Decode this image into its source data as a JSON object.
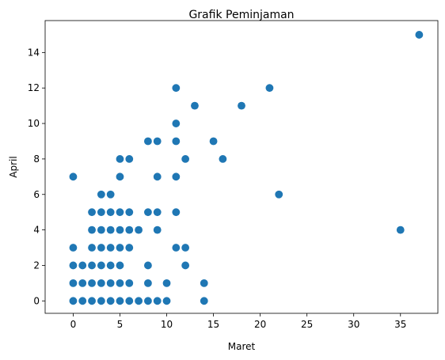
{
  "chart_data": {
    "type": "scatter",
    "title": "Grafik Peminjaman",
    "xlabel": "Maret",
    "ylabel": "April",
    "xlim": [
      -3,
      39
    ],
    "ylim": [
      -0.7,
      15.8
    ],
    "xticks": [
      0,
      5,
      10,
      15,
      20,
      25,
      30,
      35
    ],
    "yticks": [
      0,
      2,
      4,
      6,
      8,
      10,
      12,
      14
    ],
    "grid": false,
    "color": "#1f77b4",
    "points": [
      [
        37,
        15
      ],
      [
        11,
        12
      ],
      [
        21,
        12
      ],
      [
        13,
        11
      ],
      [
        18,
        11
      ],
      [
        11,
        10
      ],
      [
        8,
        9
      ],
      [
        9,
        9
      ],
      [
        11,
        9
      ],
      [
        15,
        9
      ],
      [
        5,
        8
      ],
      [
        6,
        8
      ],
      [
        12,
        8
      ],
      [
        16,
        8
      ],
      [
        0,
        7
      ],
      [
        5,
        7
      ],
      [
        9,
        7
      ],
      [
        11,
        7
      ],
      [
        3,
        6
      ],
      [
        4,
        6
      ],
      [
        22,
        6
      ],
      [
        2,
        5
      ],
      [
        3,
        5
      ],
      [
        4,
        5
      ],
      [
        5,
        5
      ],
      [
        6,
        5
      ],
      [
        8,
        5
      ],
      [
        9,
        5
      ],
      [
        11,
        5
      ],
      [
        2,
        4
      ],
      [
        3,
        4
      ],
      [
        4,
        4
      ],
      [
        5,
        4
      ],
      [
        6,
        4
      ],
      [
        7,
        4
      ],
      [
        9,
        4
      ],
      [
        35,
        4
      ],
      [
        0,
        3
      ],
      [
        2,
        3
      ],
      [
        3,
        3
      ],
      [
        4,
        3
      ],
      [
        5,
        3
      ],
      [
        6,
        3
      ],
      [
        11,
        3
      ],
      [
        12,
        3
      ],
      [
        0,
        2
      ],
      [
        1,
        2
      ],
      [
        2,
        2
      ],
      [
        3,
        2
      ],
      [
        4,
        2
      ],
      [
        5,
        2
      ],
      [
        8,
        2
      ],
      [
        12,
        2
      ],
      [
        0,
        1
      ],
      [
        1,
        1
      ],
      [
        2,
        1
      ],
      [
        3,
        1
      ],
      [
        4,
        1
      ],
      [
        5,
        1
      ],
      [
        6,
        1
      ],
      [
        8,
        1
      ],
      [
        10,
        1
      ],
      [
        14,
        1
      ],
      [
        0,
        0
      ],
      [
        1,
        0
      ],
      [
        2,
        0
      ],
      [
        3,
        0
      ],
      [
        4,
        0
      ],
      [
        5,
        0
      ],
      [
        6,
        0
      ],
      [
        7,
        0
      ],
      [
        8,
        0
      ],
      [
        9,
        0
      ],
      [
        10,
        0
      ],
      [
        14,
        0
      ]
    ]
  }
}
